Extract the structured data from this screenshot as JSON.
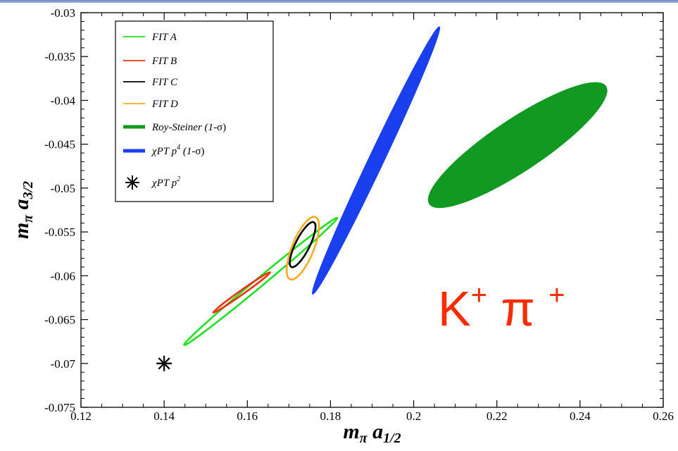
{
  "chart_data": {
    "type": "scatter",
    "xlabel": "m_π a_1/2",
    "ylabel": "m_π a_3/2",
    "xlim": [
      0.12,
      0.26
    ],
    "ylim": [
      -0.075,
      -0.03
    ],
    "xticks": [
      "0.12",
      "0.14",
      "0.16",
      "0.18",
      "0.2",
      "0.22",
      "0.24",
      "0.26"
    ],
    "yticks": [
      "-0.075",
      "-0.07",
      "-0.065",
      "-0.06",
      "-0.055",
      "-0.05",
      "-0.045",
      "-0.04",
      "-0.035",
      "-0.03"
    ],
    "legend_position": "top-left",
    "series": [
      {
        "name": "FIT A",
        "kind": "ellipse-outline",
        "color": "#22e022",
        "endpoints": [
          [
            0.1448,
            -0.0679
          ],
          [
            0.1816,
            -0.0534
          ]
        ],
        "half_width": 0.001
      },
      {
        "name": "FIT B",
        "kind": "ellipse-outline",
        "color": "#ee3311",
        "endpoints": [
          [
            0.1518,
            -0.0642
          ],
          [
            0.1655,
            -0.0596
          ]
        ],
        "half_width": 0.0005
      },
      {
        "name": "FIT C",
        "kind": "ellipse-outline",
        "color": "#000000",
        "endpoints": [
          [
            0.1706,
            -0.059
          ],
          [
            0.176,
            -0.0539
          ]
        ],
        "half_width": 0.0017
      },
      {
        "name": "FIT D",
        "kind": "ellipse-outline",
        "color": "#ffaa22",
        "endpoints": [
          [
            0.1703,
            -0.0604
          ],
          [
            0.1764,
            -0.0533
          ]
        ],
        "half_width": 0.0026
      },
      {
        "name": "Roy-Steiner (1-σ)",
        "kind": "ellipse-filled",
        "color": "#119922",
        "endpoints": [
          [
            0.2038,
            -0.0518
          ],
          [
            0.2462,
            -0.0384
          ]
        ],
        "half_width": 0.0062
      },
      {
        "name": "χPT p4 (1-σ)",
        "kind": "ellipse-filled",
        "color": "#1a3fee",
        "endpoints": [
          [
            0.1757,
            -0.0621
          ],
          [
            0.2062,
            -0.0316
          ]
        ],
        "half_width": 0.0018
      },
      {
        "name": "χPT p2",
        "kind": "point",
        "color": "#000000",
        "points": [
          [
            0.14,
            -0.07
          ]
        ]
      }
    ],
    "legend": [
      {
        "text": "FIT A",
        "sup": "",
        "tail": "",
        "tail2": "",
        "color": "#22e022",
        "style": "line"
      },
      {
        "text": "FIT B",
        "sup": "",
        "tail": "",
        "tail2": "",
        "color": "#ee3311",
        "style": "line"
      },
      {
        "text": "FIT C",
        "sup": "",
        "tail": "",
        "tail2": "",
        "color": "#000000",
        "style": "line"
      },
      {
        "text": "FIT D",
        "sup": "",
        "tail": "",
        "tail2": "",
        "color": "#ffaa22",
        "style": "line"
      },
      {
        "text": "Roy-Steiner (1",
        "sup": "",
        "tail": "-σ)",
        "tail2": "",
        "color": "#119922",
        "style": "thick"
      },
      {
        "text": "χPT p",
        "sup": "4",
        "tail": "  (1",
        "tail2": "-σ)",
        "color": "#1a3fee",
        "style": "thick"
      },
      {
        "text": "χPT p",
        "sup": "2",
        "tail": "",
        "tail2": "",
        "color": "#000000",
        "style": "star"
      }
    ],
    "annotation": {
      "text": "K",
      "sup1": "+",
      "mid": " π ",
      "sup2": "+",
      "color": "#ff2a00"
    }
  }
}
